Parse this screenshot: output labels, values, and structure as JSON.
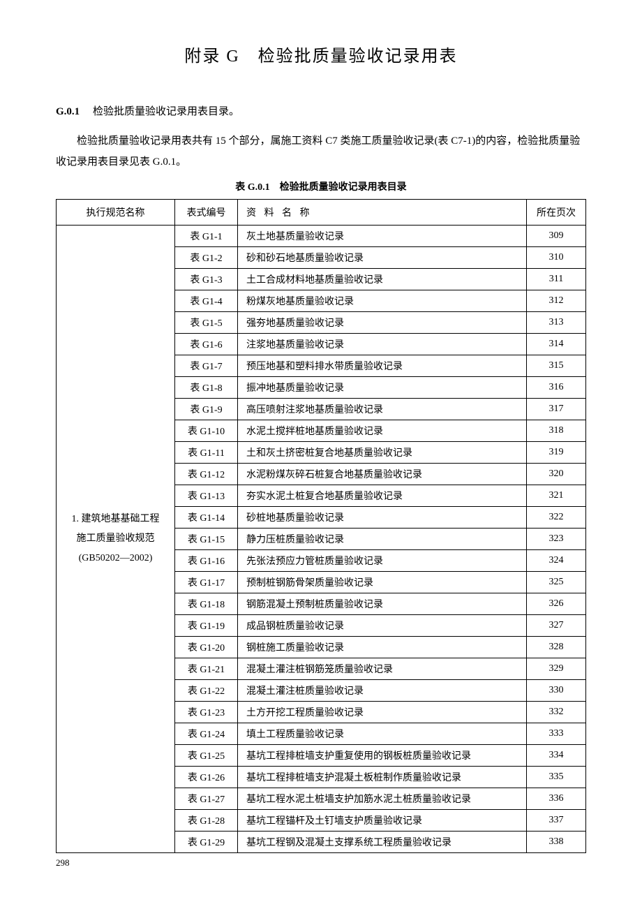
{
  "title": "附录 G　检验批质量验收记录用表",
  "section": {
    "number": "G.0.1",
    "heading": "检验批质量验收记录用表目录。",
    "paragraph": "检验批质量验收记录用表共有 15 个部分，属施工资料 C7 类施工质量验收记录(表 C7-1)的内容，检验批质量验收记录用表目录见表 G.0.1。"
  },
  "table": {
    "caption": "表 G.0.1　检验批质量验收记录用表目录",
    "headers": {
      "spec": "执行规范名称",
      "form": "表式编号",
      "name": "资 料 名 称",
      "page": "所在页次"
    },
    "spec_group": {
      "line1": "1. 建筑地基基础工程",
      "line2": "施工质量验收规范",
      "line3": "(GB50202—2002)"
    },
    "rows": [
      {
        "form": "表 G1-1",
        "name": "灰土地基质量验收记录",
        "page": "309"
      },
      {
        "form": "表 G1-2",
        "name": "砂和砂石地基质量验收记录",
        "page": "310"
      },
      {
        "form": "表 G1-3",
        "name": "土工合成材料地基质量验收记录",
        "page": "311"
      },
      {
        "form": "表 G1-4",
        "name": "粉煤灰地基质量验收记录",
        "page": "312"
      },
      {
        "form": "表 G1-5",
        "name": "强夯地基质量验收记录",
        "page": "313"
      },
      {
        "form": "表 G1-6",
        "name": "注浆地基质量验收记录",
        "page": "314"
      },
      {
        "form": "表 G1-7",
        "name": "预压地基和塑料排水带质量验收记录",
        "page": "315"
      },
      {
        "form": "表 G1-8",
        "name": "振冲地基质量验收记录",
        "page": "316"
      },
      {
        "form": "表 G1-9",
        "name": "高压喷射注浆地基质量验收记录",
        "page": "317"
      },
      {
        "form": "表 G1-10",
        "name": "水泥土搅拌桩地基质量验收记录",
        "page": "318"
      },
      {
        "form": "表 G1-11",
        "name": "土和灰土挤密桩复合地基质量验收记录",
        "page": "319"
      },
      {
        "form": "表 G1-12",
        "name": "水泥粉煤灰碎石桩复合地基质量验收记录",
        "page": "320"
      },
      {
        "form": "表 G1-13",
        "name": "夯实水泥土桩复合地基质量验收记录",
        "page": "321"
      },
      {
        "form": "表 G1-14",
        "name": "砂桩地基质量验收记录",
        "page": "322"
      },
      {
        "form": "表 G1-15",
        "name": "静力压桩质量验收记录",
        "page": "323"
      },
      {
        "form": "表 G1-16",
        "name": "先张法预应力管桩质量验收记录",
        "page": "324"
      },
      {
        "form": "表 G1-17",
        "name": "预制桩钢筋骨架质量验收记录",
        "page": "325"
      },
      {
        "form": "表 G1-18",
        "name": "钢筋混凝土预制桩质量验收记录",
        "page": "326"
      },
      {
        "form": "表 G1-19",
        "name": "成品钢桩质量验收记录",
        "page": "327"
      },
      {
        "form": "表 G1-20",
        "name": "钢桩施工质量验收记录",
        "page": "328"
      },
      {
        "form": "表 G1-21",
        "name": "混凝土灌注桩钢筋笼质量验收记录",
        "page": "329"
      },
      {
        "form": "表 G1-22",
        "name": "混凝土灌注桩质量验收记录",
        "page": "330"
      },
      {
        "form": "表 G1-23",
        "name": "土方开挖工程质量验收记录",
        "page": "332"
      },
      {
        "form": "表 G1-24",
        "name": "填土工程质量验收记录",
        "page": "333"
      },
      {
        "form": "表 G1-25",
        "name": "基坑工程排桩墙支护重复使用的钢板桩质量验收记录",
        "page": "334"
      },
      {
        "form": "表 G1-26",
        "name": "基坑工程排桩墙支护混凝土板桩制作质量验收记录",
        "page": "335"
      },
      {
        "form": "表 G1-27",
        "name": "基坑工程水泥土桩墙支护加筋水泥土桩质量验收记录",
        "page": "336"
      },
      {
        "form": "表 G1-28",
        "name": "基坑工程锚杆及土钉墙支护质量验收记录",
        "page": "337"
      },
      {
        "form": "表 G1-29",
        "name": "基坑工程钢及混凝土支撑系统工程质量验收记录",
        "page": "338"
      }
    ]
  },
  "page_number": "298"
}
